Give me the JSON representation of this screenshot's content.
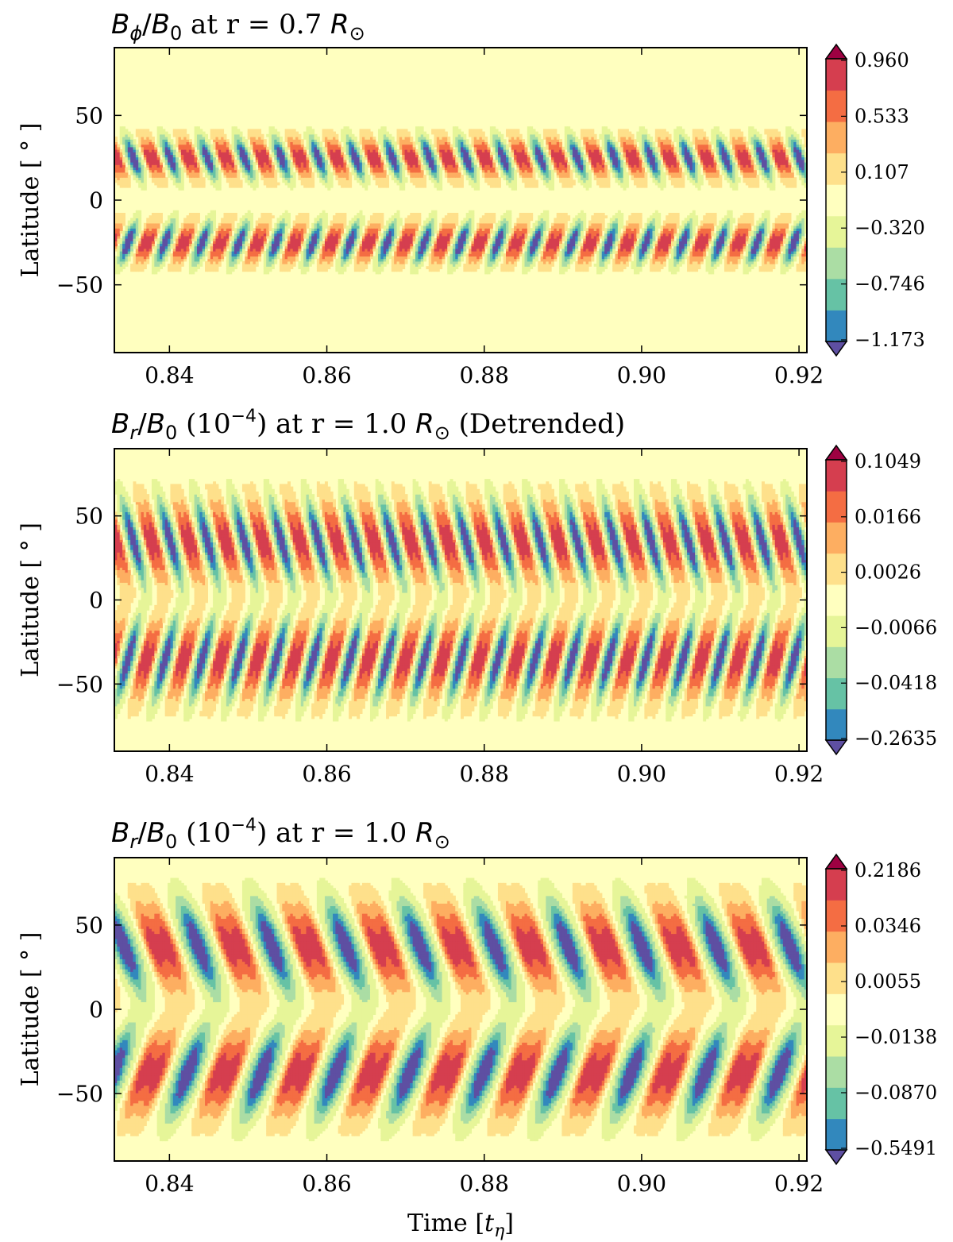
{
  "chart_data": [
    {
      "type": "heatmap",
      "title": "B_ϕ/B_0 at r = 0.7 R_⊙",
      "title_parts": {
        "field": "B",
        "sub": "ϕ",
        "ref": "B",
        "ref_sub": "0",
        "suffix": " at r = 0.7 ",
        "R": "R",
        "sun": "⊙"
      },
      "xlabel": "",
      "ylabel": "Latitude [ ° ]",
      "xlim": [
        0.833,
        0.921
      ],
      "ylim": [
        -90,
        90
      ],
      "xticks": [
        "0.84",
        "0.86",
        "0.88",
        "0.90",
        "0.92"
      ],
      "xtick_values": [
        0.84,
        0.86,
        0.88,
        0.9,
        0.92
      ],
      "yticks": [
        "50",
        "0",
        "−50"
      ],
      "ytick_values": [
        50,
        0,
        -50
      ],
      "colorbar_ticks": [
        "0.960",
        "0.533",
        "0.107",
        "−0.320",
        "−0.746",
        "−1.173"
      ],
      "pattern": {
        "bands": [
          [
            10,
            40
          ],
          [
            -40,
            -10
          ]
        ],
        "period": 0.0047,
        "tilt": 0.6
      }
    },
    {
      "type": "heatmap",
      "title": "B_r/B_0 (10^−4) at r = 1.0 R_⊙ (Detrended)",
      "title_parts": {
        "field": "B",
        "sub": "r",
        "ref": "B",
        "ref_sub": "0",
        "paren": " (10",
        "exp": "−4",
        "suffix": ") at r = 1.0 ",
        "R": "R",
        "sun": "⊙",
        "tail": " (Detrended)"
      },
      "xlabel": "",
      "ylabel": "Latitude [ ° ]",
      "xlim": [
        0.833,
        0.921
      ],
      "ylim": [
        -90,
        90
      ],
      "xticks": [
        "0.84",
        "0.86",
        "0.88",
        "0.90",
        "0.92"
      ],
      "xtick_values": [
        0.84,
        0.86,
        0.88,
        0.9,
        0.92
      ],
      "yticks": [
        "50",
        "0",
        "−50"
      ],
      "ytick_values": [
        50,
        0,
        -50
      ],
      "colorbar_ticks": [
        "0.1049",
        "0.0166",
        "0.0026",
        "−0.0066",
        "−0.0418",
        "−0.2635"
      ],
      "pattern": {
        "bands": [
          [
            5,
            65
          ],
          [
            -65,
            -5
          ]
        ],
        "period": 0.0047,
        "tilt": 0.9
      }
    },
    {
      "type": "heatmap",
      "title": "B_r/B_0 (10^−4) at r = 1.0 R_⊙",
      "title_parts": {
        "field": "B",
        "sub": "r",
        "ref": "B",
        "ref_sub": "0",
        "paren": " (10",
        "exp": "−4",
        "suffix": ") at r = 1.0 ",
        "R": "R",
        "sun": "⊙",
        "tail": ""
      },
      "xlabel": "Time [t_η]",
      "xlabel_parts": {
        "pre": "Time [",
        "t": "t",
        "sub": "η",
        "post": "]"
      },
      "ylabel": "Latitude [ ° ]",
      "xlim": [
        0.833,
        0.921
      ],
      "ylim": [
        -90,
        90
      ],
      "xticks": [
        "0.84",
        "0.86",
        "0.88",
        "0.90",
        "0.92"
      ],
      "xtick_values": [
        0.84,
        0.86,
        0.88,
        0.9,
        0.92
      ],
      "yticks": [
        "50",
        "0",
        "−50"
      ],
      "ytick_values": [
        50,
        0,
        -50
      ],
      "colorbar_ticks": [
        "0.2186",
        "0.0346",
        "0.0055",
        "−0.0138",
        "−0.0870",
        "−0.5491"
      ],
      "pattern": {
        "bands": [
          [
            5,
            70
          ],
          [
            -70,
            -5
          ]
        ],
        "period": 0.0094,
        "tilt": 0.7
      }
    }
  ],
  "colormap": {
    "name": "Spectral_r",
    "levels": [
      "#5e4fa2",
      "#3288bd",
      "#66c2a5",
      "#abdda4",
      "#e6f598",
      "#ffffbf",
      "#fee08b",
      "#fdae61",
      "#f46d43",
      "#d53e4f",
      "#9e0142"
    ]
  }
}
